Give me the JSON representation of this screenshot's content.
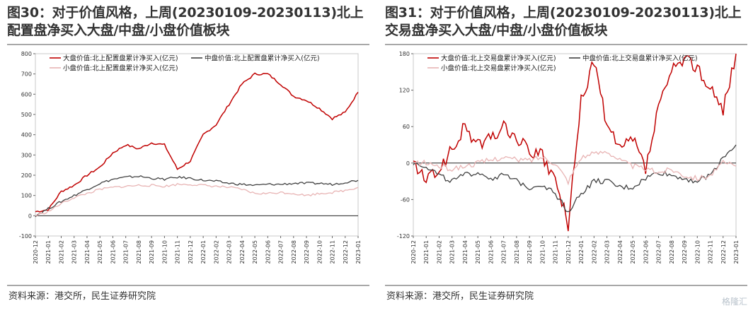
{
  "charts": [
    {
      "title": "图30：对于价值风格，上周(20230109-20230113)北上配置盘净买入大盘/中盘/小盘价值板块",
      "source": "资料来源：港交所，民生证券研究院"
    },
    {
      "title": "图31：对于价值风格，上周(20230109-20230113)北上交易盘净买入大盘/中盘/小盘价值板块",
      "source": "资料来源：港交所，民生证券研究院"
    }
  ],
  "watermark": "格隆汇",
  "chart_data": [
    {
      "type": "line",
      "title": "图30：对于价值风格，上周(20230109-20230113)北上配置盘净买入大盘/中盘/小盘价值板块",
      "ylim": [
        -100,
        800
      ],
      "yticks": [
        -100,
        0,
        100,
        200,
        300,
        400,
        500,
        600,
        700,
        800
      ],
      "x": [
        "2020-12",
        "2021-01",
        "2021-02",
        "2021-03",
        "2021-04",
        "2021-05",
        "2021-06",
        "2021-07",
        "2021-08",
        "2021-09",
        "2021-10",
        "2021-11",
        "2021-12",
        "2022-01",
        "2022-02",
        "2022-03",
        "2022-04",
        "2022-05",
        "2022-06",
        "2022-07",
        "2022-08",
        "2022-09",
        "2022-10",
        "2022-11",
        "2022-12",
        "2023-01"
      ],
      "legend": "top",
      "series": [
        {
          "name": "大盘价值:北上配置盘累计净买入(亿元)",
          "color": "#c00000",
          "values": [
            20,
            30,
            120,
            150,
            200,
            240,
            310,
            350,
            330,
            360,
            350,
            230,
            270,
            400,
            450,
            550,
            650,
            700,
            700,
            650,
            590,
            570,
            530,
            480,
            510,
            610
          ]
        },
        {
          "name": "中盘价值:北上配置盘累计净买入(亿元)",
          "color": "#404040",
          "values": [
            0,
            35,
            70,
            100,
            130,
            160,
            180,
            190,
            195,
            185,
            180,
            190,
            185,
            175,
            170,
            160,
            155,
            150,
            155,
            155,
            160,
            160,
            160,
            155,
            165,
            175
          ]
        },
        {
          "name": "小盘价值:北上配置盘累计净买入(亿元)",
          "color": "#e8b4b4",
          "values": [
            0,
            20,
            60,
            90,
            110,
            130,
            140,
            145,
            150,
            150,
            145,
            155,
            155,
            150,
            145,
            140,
            130,
            110,
            110,
            115,
            110,
            100,
            110,
            115,
            125,
            140
          ]
        }
      ]
    },
    {
      "type": "line",
      "title": "图31：对于价值风格，上周(20230109-20230113)北上交易盘净买入大盘/中盘/小盘价值板块",
      "ylim": [
        -120,
        180
      ],
      "yticks": [
        -120,
        -60,
        0,
        60,
        120,
        180
      ],
      "x": [
        "2020-12",
        "2021-01",
        "2021-02",
        "2021-03",
        "2021-04",
        "2021-05",
        "2021-06",
        "2021-07",
        "2021-08",
        "2021-09",
        "2021-10",
        "2021-11",
        "2021-12",
        "2022-01",
        "2022-02",
        "2022-03",
        "2022-04",
        "2022-05",
        "2022-06",
        "2022-07",
        "2022-08",
        "2022-09",
        "2022-10",
        "2022-11",
        "2022-12",
        "2023-01"
      ],
      "legend": "top",
      "series": [
        {
          "name": "大盘价值:北上交易盘累计净买入(亿元)",
          "color": "#c00000",
          "values": [
            0,
            -30,
            -10,
            20,
            60,
            30,
            40,
            60,
            40,
            20,
            10,
            -30,
            -100,
            100,
            170,
            60,
            20,
            40,
            -10,
            90,
            150,
            170,
            160,
            120,
            90,
            180
          ]
        },
        {
          "name": "中盘价值:北上交易盘累计净买入(亿元)",
          "color": "#404040",
          "values": [
            0,
            -5,
            -20,
            -30,
            -20,
            -15,
            -25,
            -20,
            -30,
            -40,
            -35,
            -50,
            -80,
            -50,
            -30,
            -30,
            -40,
            -40,
            -25,
            -15,
            -20,
            -25,
            -30,
            -20,
            10,
            30
          ]
        },
        {
          "name": "小盘价值:北上交易盘累计净买入(亿元)",
          "color": "#e8b4b4",
          "values": [
            0,
            0,
            -5,
            -10,
            -5,
            0,
            5,
            10,
            5,
            5,
            10,
            0,
            -30,
            10,
            15,
            20,
            5,
            -5,
            -10,
            -15,
            -10,
            -20,
            -25,
            -20,
            0,
            -5
          ]
        }
      ]
    }
  ]
}
